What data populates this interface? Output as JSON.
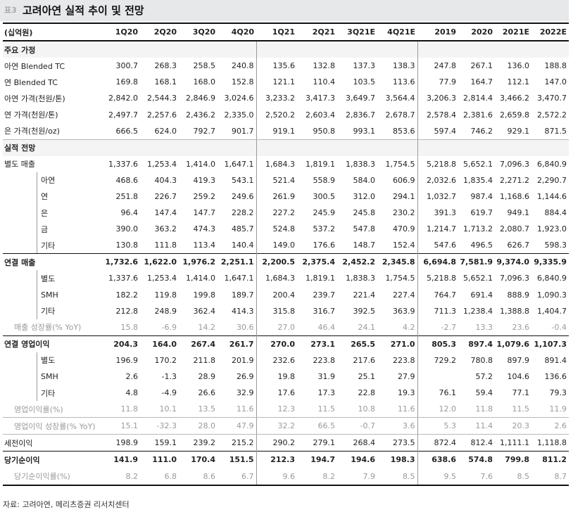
{
  "title": {
    "prefix": "표3",
    "text": "고려아연 실적 추이 및 전망"
  },
  "columns": [
    "(십억원)",
    "1Q20",
    "2Q20",
    "3Q20",
    "4Q20",
    "1Q21",
    "2Q21",
    "3Q21E",
    "4Q21E",
    "2019",
    "2020",
    "2021E",
    "2022E"
  ],
  "rows": [
    {
      "label": "주요 가정",
      "type": "section",
      "values": [
        "",
        "",
        "",
        "",
        "",
        "",
        "",
        "",
        "",
        "",
        "",
        ""
      ]
    },
    {
      "label": "아연 Blended TC",
      "type": "normal",
      "values": [
        "300.7",
        "268.3",
        "258.5",
        "240.8",
        "135.6",
        "132.8",
        "137.3",
        "138.3",
        "247.8",
        "267.1",
        "136.0",
        "188.8"
      ]
    },
    {
      "label": "연 Blended TC",
      "type": "normal",
      "values": [
        "169.8",
        "168.1",
        "168.0",
        "152.8",
        "121.1",
        "110.4",
        "103.5",
        "113.6",
        "77.9",
        "164.7",
        "112.1",
        "147.0"
      ]
    },
    {
      "label": "아연 가격(천원/톤)",
      "type": "normal",
      "values": [
        "2,842.0",
        "2,544.3",
        "2,846.9",
        "3,024.6",
        "3,233.2",
        "3,417.3",
        "3,649.7",
        "3,564.4",
        "3,206.3",
        "2,814.4",
        "3,466.2",
        "3,470.7"
      ]
    },
    {
      "label": "연 가격(천원/톤)",
      "type": "normal",
      "values": [
        "2,497.7",
        "2,257.6",
        "2,436.2",
        "2,335.0",
        "2,520.2",
        "2,603.4",
        "2,836.7",
        "2,678.7",
        "2,578.4",
        "2,381.6",
        "2,659.8",
        "2,572.2"
      ]
    },
    {
      "label": "은 가격(천원/oz)",
      "type": "normal",
      "values": [
        "666.5",
        "624.0",
        "792.7",
        "901.7",
        "919.1",
        "950.8",
        "993.1",
        "853.6",
        "597.4",
        "746.2",
        "929.1",
        "871.5"
      ]
    },
    {
      "label": "실적 전망",
      "type": "section",
      "values": [
        "",
        "",
        "",
        "",
        "",
        "",
        "",
        "",
        "",
        "",
        "",
        ""
      ]
    },
    {
      "label": "별도 매출",
      "type": "normal",
      "values": [
        "1,337.6",
        "1,253.4",
        "1,414.0",
        "1,647.1",
        "1,684.3",
        "1,819.1",
        "1,838.3",
        "1,754.5",
        "5,218.8",
        "5,652.1",
        "7,096.3",
        "6,840.9"
      ]
    },
    {
      "label": "아연",
      "type": "sub",
      "values": [
        "468.6",
        "404.3",
        "419.3",
        "543.1",
        "521.4",
        "558.9",
        "584.0",
        "606.9",
        "2,032.6",
        "1,835.4",
        "2,271.2",
        "2,290.7"
      ]
    },
    {
      "label": "연",
      "type": "sub",
      "values": [
        "251.8",
        "226.7",
        "259.2",
        "249.6",
        "261.9",
        "300.5",
        "312.0",
        "294.1",
        "1,032.7",
        "987.4",
        "1,168.6",
        "1,144.6"
      ]
    },
    {
      "label": "은",
      "type": "sub",
      "values": [
        "96.4",
        "147.4",
        "147.7",
        "228.2",
        "227.2",
        "245.9",
        "245.8",
        "230.2",
        "391.3",
        "619.7",
        "949.1",
        "884.4"
      ]
    },
    {
      "label": "금",
      "type": "sub",
      "values": [
        "390.0",
        "363.2",
        "474.3",
        "485.7",
        "524.8",
        "537.2",
        "547.8",
        "470.9",
        "1,214.7",
        "1,713.2",
        "2,080.7",
        "1,923.0"
      ]
    },
    {
      "label": "기타",
      "type": "sub",
      "values": [
        "130.8",
        "111.8",
        "113.4",
        "140.4",
        "149.0",
        "176.6",
        "148.7",
        "152.4",
        "547.6",
        "496.5",
        "626.7",
        "598.3"
      ]
    },
    {
      "label": "연결 매출",
      "type": "bold",
      "values": [
        "1,732.6",
        "1,622.0",
        "1,976.2",
        "2,251.1",
        "2,200.5",
        "2,375.4",
        "2,452.2",
        "2,345.8",
        "6,694.8",
        "7,581.9",
        "9,374.0",
        "9,335.9"
      ]
    },
    {
      "label": "별도",
      "type": "sub",
      "values": [
        "1,337.6",
        "1,253.4",
        "1,414.0",
        "1,647.1",
        "1,684.3",
        "1,819.1",
        "1,838.3",
        "1,754.5",
        "5,218.8",
        "5,652.1",
        "7,096.3",
        "6,840.9"
      ]
    },
    {
      "label": "SMH",
      "type": "sub",
      "values": [
        "182.2",
        "119.8",
        "199.8",
        "189.7",
        "200.4",
        "239.7",
        "221.4",
        "227.4",
        "764.7",
        "691.4",
        "888.9",
        "1,090.3"
      ]
    },
    {
      "label": "기타",
      "type": "sub",
      "values": [
        "212.8",
        "248.9",
        "362.4",
        "414.3",
        "315.8",
        "316.7",
        "392.5",
        "363.9",
        "711.3",
        "1,238.4",
        "1,388.8",
        "1,404.7"
      ]
    },
    {
      "label": "매출 성장률(% YoY)",
      "type": "gray",
      "values": [
        "15.8",
        "-6.9",
        "14.2",
        "30.6",
        "27.0",
        "46.4",
        "24.1",
        "4.2",
        "-2.7",
        "13.3",
        "23.6",
        "-0.4"
      ]
    },
    {
      "label": "연결 영업이익",
      "type": "bold",
      "values": [
        "204.3",
        "164.0",
        "267.4",
        "261.7",
        "270.0",
        "273.1",
        "265.5",
        "271.0",
        "805.3",
        "897.4",
        "1,079.6",
        "1,107.3"
      ]
    },
    {
      "label": "별도",
      "type": "sub",
      "values": [
        "196.9",
        "170.2",
        "211.8",
        "201.9",
        "232.6",
        "223.8",
        "217.6",
        "223.8",
        "729.2",
        "780.8",
        "897.9",
        "891.4"
      ]
    },
    {
      "label": "SMH",
      "type": "sub",
      "values": [
        "2.6",
        "-1.3",
        "28.9",
        "26.9",
        "19.8",
        "31.9",
        "25.1",
        "27.9",
        "",
        "57.2",
        "104.6",
        "136.6"
      ]
    },
    {
      "label": "기타",
      "type": "sub",
      "values": [
        "4.8",
        "-4.9",
        "26.6",
        "32.9",
        "17.6",
        "17.3",
        "22.8",
        "19.3",
        "76.1",
        "59.4",
        "77.1",
        "79.3"
      ]
    },
    {
      "label": "영업이익률(%)",
      "type": "gray",
      "values": [
        "11.8",
        "10.1",
        "13.5",
        "11.6",
        "12.3",
        "11.5",
        "10.8",
        "11.6",
        "12.0",
        "11.8",
        "11.5",
        "11.9"
      ]
    },
    {
      "label": "영업이익 성장률(% YoY)",
      "type": "gray",
      "values": [
        "15.1",
        "-32.3",
        "28.0",
        "47.9",
        "32.2",
        "66.5",
        "-0.7",
        "3.6",
        "5.3",
        "11.4",
        "20.3",
        "2.6"
      ]
    },
    {
      "label": "세전이익",
      "type": "normal",
      "values": [
        "198.9",
        "159.1",
        "239.2",
        "215.2",
        "290.2",
        "279.1",
        "268.4",
        "273.5",
        "872.4",
        "812.4",
        "1,111.1",
        "1,118.8"
      ]
    },
    {
      "label": "당기순이익",
      "type": "bold",
      "values": [
        "141.9",
        "111.0",
        "170.4",
        "151.5",
        "212.3",
        "194.7",
        "194.6",
        "198.3",
        "638.6",
        "574.8",
        "799.8",
        "811.2"
      ]
    },
    {
      "label": "당기순이익률(%)",
      "type": "gray",
      "values": [
        "8.2",
        "6.8",
        "8.6",
        "6.7",
        "9.6",
        "8.2",
        "7.9",
        "8.5",
        "9.5",
        "7.6",
        "8.5",
        "8.7"
      ]
    }
  ],
  "source": "자료: 고려아연, 메리츠증권 리서치센터"
}
